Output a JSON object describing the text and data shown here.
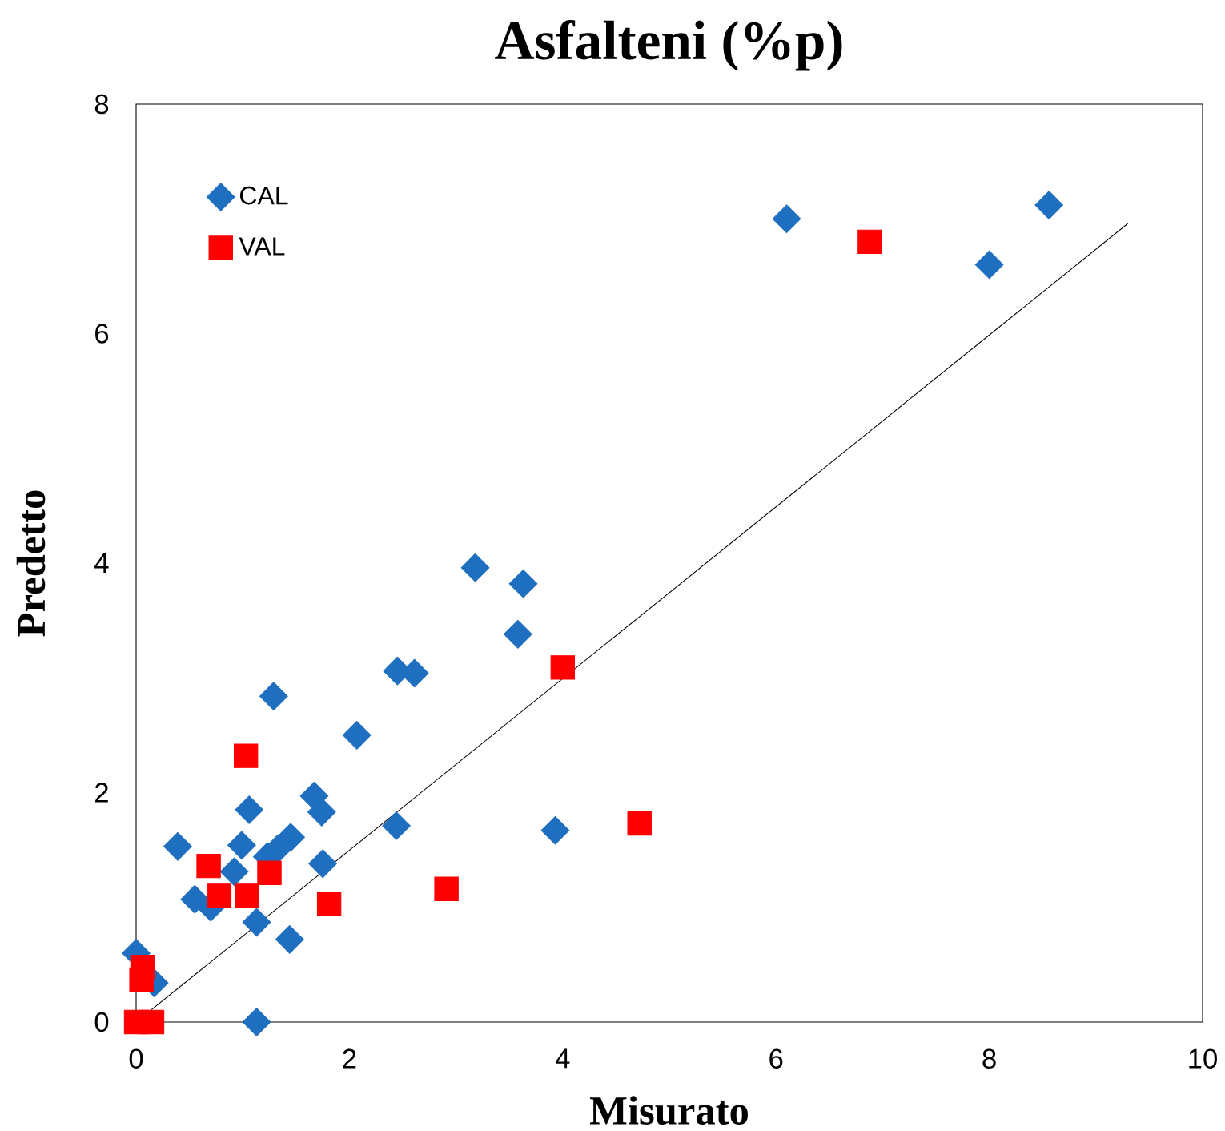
{
  "chart_data": {
    "type": "scatter",
    "title": "Asfalteni (%p)",
    "xlabel": "Misurato",
    "ylabel": "Predetto",
    "xlim": [
      0,
      10
    ],
    "ylim": [
      0,
      8
    ],
    "xticks": [
      0,
      2,
      4,
      6,
      8,
      10
    ],
    "yticks": [
      0,
      2,
      4,
      6,
      8
    ],
    "grid": false,
    "legend": "top left",
    "series": [
      {
        "name": "CAL",
        "color": "#1f6fc0",
        "marker": "diamond",
        "x": [
          8.56,
          8.0,
          6.1,
          3.18,
          3.63,
          3.58,
          2.45,
          2.61,
          1.29,
          2.07,
          1.67,
          1.74,
          1.06,
          2.44,
          3.93,
          0.39,
          0.99,
          1.45,
          1.33,
          1.23,
          1.75,
          0.92,
          0.55,
          0.7,
          1.13,
          1.44,
          1.13,
          0,
          0.17
        ],
        "values": [
          7.12,
          6.6,
          7.0,
          3.96,
          3.82,
          3.38,
          3.06,
          3.04,
          2.84,
          2.5,
          1.97,
          1.83,
          1.85,
          1.71,
          1.67,
          1.53,
          1.54,
          1.61,
          1.51,
          1.44,
          1.38,
          1.31,
          1.07,
          1.0,
          0.87,
          0.72,
          0.0,
          0.6,
          0.34
        ]
      },
      {
        "name": "VAL",
        "color": "#ff0000",
        "marker": "square",
        "x": [
          6.88,
          4.0,
          1.03,
          4.72,
          0.68,
          1.25,
          0.78,
          1.04,
          1.81,
          2.91,
          0.06,
          0.05,
          0,
          0.15
        ],
        "values": [
          6.8,
          3.09,
          2.32,
          1.73,
          1.36,
          1.3,
          1.1,
          1.1,
          1.03,
          1.16,
          0.48,
          0.37,
          0,
          0
        ]
      },
      {
        "type": "line",
        "color": "#000000",
        "marker": "none",
        "x": [
          0,
          9.3
        ],
        "values": [
          0,
          6.96
        ]
      }
    ]
  }
}
